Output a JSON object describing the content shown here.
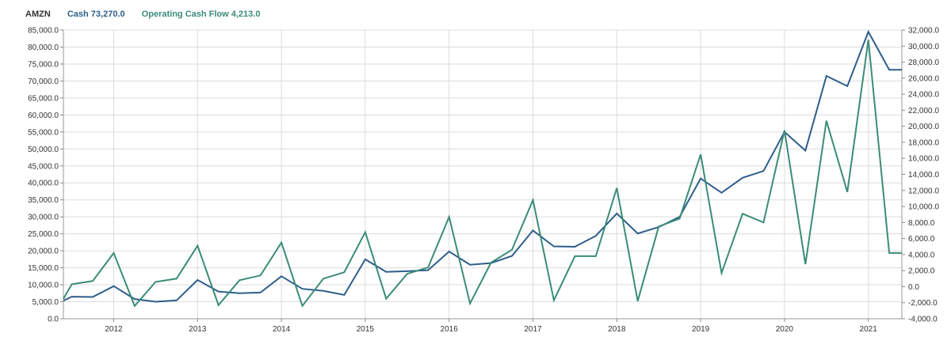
{
  "legend": {
    "ticker": "AMZN",
    "cash_label": "Cash 73,270.0",
    "ocf_label": "Operating Cash Flow 4,213.0"
  },
  "colors": {
    "cash": "#2e5e8a",
    "ocf": "#3a8c78",
    "ticker": "#333333",
    "grid": "#dcdcdc"
  },
  "chart_data": {
    "type": "line",
    "title": "",
    "xlabel": "",
    "ylabel": "",
    "x_ticks": [
      "2012",
      "2013",
      "2014",
      "2015",
      "2016",
      "2017",
      "2018",
      "2019",
      "2020",
      "2021"
    ],
    "left_axis": {
      "range": [
        0,
        85000
      ],
      "ticks": [
        "0.0",
        "5,000.0",
        "10,000.0",
        "15,000.0",
        "20,000.0",
        "25,000.0",
        "30,000.0",
        "35,000.0",
        "40,000.0",
        "45,000.0",
        "50,000.0",
        "55,000.0",
        "60,000.0",
        "65,000.0",
        "70,000.0",
        "75,000.0",
        "80,000.0",
        "85,000.0"
      ]
    },
    "right_axis": {
      "range": [
        -4000,
        32000
      ],
      "ticks": [
        "-4,000.0",
        "-2,000.0",
        "0.0",
        "2,000.0",
        "4,000.0",
        "6,000.0",
        "8,000.0",
        "10,000.0",
        "12,000.0",
        "14,000.0",
        "16,000.0",
        "18,000.0",
        "20,000.0",
        "22,000.0",
        "24,000.0",
        "26,000.0",
        "28,000.0",
        "30,000.0",
        "32,000.0"
      ]
    },
    "x_range": [
      2011.4,
      2021.4
    ],
    "grid": true,
    "series": [
      {
        "name": "Cash",
        "axis": "left",
        "x": [
          2011.4,
          2011.5,
          2011.75,
          2012.0,
          2012.25,
          2012.5,
          2012.75,
          2013.0,
          2013.25,
          2013.5,
          2013.75,
          2014.0,
          2014.25,
          2014.5,
          2014.75,
          2015.0,
          2015.25,
          2015.5,
          2015.75,
          2016.0,
          2016.25,
          2016.5,
          2016.75,
          2017.0,
          2017.25,
          2017.5,
          2017.75,
          2018.0,
          2018.25,
          2018.5,
          2018.75,
          2019.0,
          2019.25,
          2019.5,
          2019.75,
          2020.0,
          2020.25,
          2020.5,
          2020.75,
          2021.0,
          2021.25,
          2021.4
        ],
        "values": [
          5300,
          6500,
          6400,
          9600,
          5800,
          5000,
          5400,
          11400,
          8000,
          7500,
          7700,
          12500,
          8800,
          8200,
          7000,
          17500,
          13800,
          14000,
          14300,
          19800,
          15900,
          16400,
          18500,
          26000,
          21300,
          21200,
          24400,
          31000,
          25100,
          27000,
          30000,
          41300,
          37100,
          41500,
          43500,
          55000,
          49500,
          71500,
          68500,
          84500,
          73300,
          73300
        ]
      },
      {
        "name": "Operating Cash Flow",
        "axis": "right",
        "x": [
          2011.4,
          2011.5,
          2011.75,
          2012.0,
          2012.25,
          2012.5,
          2012.75,
          2013.0,
          2013.25,
          2013.5,
          2013.75,
          2014.0,
          2014.25,
          2014.5,
          2014.75,
          2015.0,
          2015.25,
          2015.5,
          2015.75,
          2016.0,
          2016.25,
          2016.5,
          2016.75,
          2017.0,
          2017.25,
          2017.5,
          2017.75,
          2018.0,
          2018.25,
          2018.5,
          2018.75,
          2019.0,
          2019.25,
          2019.5,
          2019.75,
          2020.0,
          2020.25,
          2020.5,
          2020.75,
          2021.0,
          2021.25,
          2021.4
        ],
        "values": [
          -1500,
          300,
          700,
          4200,
          -2400,
          600,
          1000,
          5100,
          -2300,
          800,
          1400,
          5500,
          -2400,
          1000,
          1800,
          6800,
          -1500,
          1600,
          2400,
          8700,
          -2100,
          3000,
          4600,
          10800,
          -1700,
          3800,
          3800,
          12300,
          -1800,
          7500,
          8500,
          16500,
          1700,
          9100,
          8000,
          19500,
          2800,
          20700,
          11800,
          30800,
          4200,
          4200
        ]
      }
    ]
  }
}
